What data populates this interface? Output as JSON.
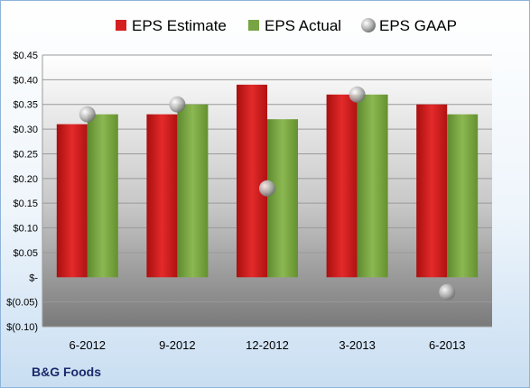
{
  "chart_data": {
    "type": "bar",
    "categories": [
      "6-2012",
      "9-2012",
      "12-2012",
      "3-2013",
      "6-2013"
    ],
    "series": [
      {
        "name": "EPS Estimate",
        "type": "bar",
        "color": "#d42020",
        "values": [
          0.31,
          0.33,
          0.39,
          0.37,
          0.35
        ]
      },
      {
        "name": "EPS Actual",
        "type": "bar",
        "color": "#78a443",
        "values": [
          0.33,
          0.35,
          0.32,
          0.37,
          0.33
        ]
      },
      {
        "name": "EPS GAAP",
        "type": "scatter",
        "color": "#b8b8b8",
        "values": [
          0.33,
          0.35,
          0.18,
          0.37,
          -0.03
        ]
      }
    ],
    "ylim": [
      -0.1,
      0.45
    ],
    "yticks": [
      0.45,
      0.4,
      0.35,
      0.3,
      0.25,
      0.2,
      0.15,
      0.1,
      0.05,
      0,
      -0.05,
      -0.1
    ],
    "ytick_labels": [
      "$0.45",
      "$0.40",
      "$0.35",
      "$0.30",
      "$0.25",
      "$0.20",
      "$0.15",
      "$0.10",
      "$0.05",
      "$-",
      "$(0.05)",
      "$(0.10)"
    ],
    "grid": true,
    "legend_position": "top"
  },
  "footer": {
    "label": "B&G Foods"
  }
}
